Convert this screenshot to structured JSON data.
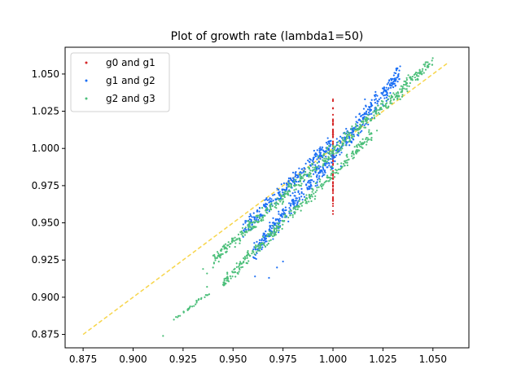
{
  "chart_data": {
    "type": "scatter",
    "title": "Plot of growth rate (lambda1=50)",
    "xlabel": "",
    "ylabel": "",
    "xlim": [
      0.866,
      1.068
    ],
    "ylim": [
      0.866,
      1.068
    ],
    "x_ticks": [
      "0.875",
      "0.900",
      "0.925",
      "0.950",
      "0.975",
      "1.000",
      "1.025",
      "1.050"
    ],
    "y_ticks": [
      "0.875",
      "0.900",
      "0.925",
      "0.950",
      "0.975",
      "1.000",
      "1.025",
      "1.050"
    ],
    "legend_position": "top-left",
    "grid": false,
    "series": [
      {
        "name": "g0 and g1",
        "color": "#d62728",
        "bands": [
          {
            "x0": 1.0,
            "y0": 0.958,
            "x1": 1.0,
            "y1": 1.034,
            "spread": 0.0005,
            "n": 80
          }
        ],
        "points": [
          [
            1.0,
            0.956
          ],
          [
            1.0,
            0.958
          ],
          [
            1.0,
            1.033
          ]
        ]
      },
      {
        "name": "g1 and g2",
        "color": "#1a6ef5",
        "bands": [
          {
            "x0": 0.96,
            "y0": 0.93,
            "x1": 1.034,
            "y1": 1.051,
            "spread": 0.01,
            "n": 520
          },
          {
            "x0": 0.955,
            "y0": 0.945,
            "x1": 1.0,
            "y1": 1.005,
            "spread": 0.008,
            "n": 260
          }
        ],
        "points": [
          [
            0.961,
            0.914
          ],
          [
            0.968,
            0.913
          ],
          [
            0.972,
            0.92
          ],
          [
            0.975,
            0.924
          ],
          [
            1.004,
            0.988
          ],
          [
            1.016,
            1.033
          ],
          [
            1.018,
            1.028
          ]
        ]
      },
      {
        "name": "g2 and g3",
        "color": "#4cbf7a",
        "bands": [
          {
            "x0": 0.94,
            "y0": 0.925,
            "x1": 1.05,
            "y1": 1.059,
            "spread": 0.007,
            "n": 520
          },
          {
            "x0": 0.945,
            "y0": 0.91,
            "x1": 1.02,
            "y1": 1.01,
            "spread": 0.006,
            "n": 320
          },
          {
            "x0": 0.92,
            "y0": 0.885,
            "x1": 0.94,
            "y1": 0.905,
            "spread": 0.002,
            "n": 30
          }
        ],
        "points": [
          [
            0.915,
            0.874
          ],
          [
            0.935,
            0.919
          ],
          [
            0.937,
            0.916
          ],
          [
            0.94,
            0.92
          ],
          [
            0.937,
            0.907
          ],
          [
            1.018,
            1.011
          ],
          [
            1.022,
            1.012
          ]
        ]
      }
    ],
    "reference_line": {
      "style": "dashed",
      "color": "#f7d54a",
      "from": [
        0.875,
        0.875
      ],
      "to": [
        1.058,
        1.058
      ]
    }
  }
}
